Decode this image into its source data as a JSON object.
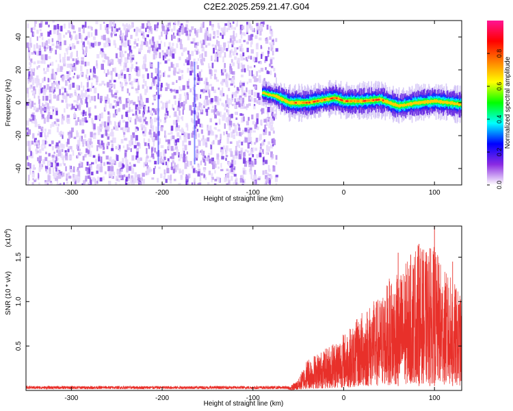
{
  "title": "C2E2.2025.259.21.47.G04",
  "chart_data": [
    {
      "type": "heatmap",
      "name": "spectrogram",
      "xlabel": "Height of straight line (km)",
      "ylabel": "Frequency (Hz)",
      "xlim": [
        -350,
        130
      ],
      "ylim": [
        -50,
        50
      ],
      "xticks": [
        -300,
        -200,
        -100,
        0,
        100
      ],
      "xtick_labels": [
        "-300",
        "-200",
        "-100",
        "0",
        "100"
      ],
      "yticks": [
        -40,
        -20,
        0,
        20,
        40
      ],
      "ytick_labels": [
        "-40",
        "-20",
        "0",
        "20",
        "40"
      ],
      "noise_region_x": [
        -350,
        -75
      ],
      "signal_region_x": [
        -90,
        130
      ],
      "signal_center_freq_hz": [
        {
          "x": -90,
          "f": 6
        },
        {
          "x": -75,
          "f": 4
        },
        {
          "x": -60,
          "f": 0
        },
        {
          "x": -40,
          "f": 0
        },
        {
          "x": -20,
          "f": 2
        },
        {
          "x": -10,
          "f": 3
        },
        {
          "x": 0,
          "f": 1
        },
        {
          "x": 20,
          "f": 1
        },
        {
          "x": 40,
          "f": 2
        },
        {
          "x": 60,
          "f": -2
        },
        {
          "x": 80,
          "f": 0
        },
        {
          "x": 100,
          "f": 1
        },
        {
          "x": 130,
          "f": -1
        }
      ],
      "colorbar": {
        "label": "Normalized spectral amplitude",
        "range": [
          0,
          1
        ],
        "ticks": [
          0.0,
          0.2,
          0.4,
          0.6,
          0.8
        ],
        "tick_labels": [
          "0.0",
          "0.2",
          "0.4",
          "0.6",
          "0.8"
        ],
        "colors": [
          "#ffffff",
          "#8a2be2",
          "#0000ff",
          "#00ffff",
          "#00ff00",
          "#ffff00",
          "#ff8000",
          "#ff0000",
          "#ff1493"
        ]
      }
    },
    {
      "type": "line",
      "name": "snr",
      "xlabel": "Height of straight line (km)",
      "ylabel": "SNR (10 * v/v)",
      "multiplier_label": "(x10",
      "multiplier_exp": "4",
      "multiplier_close": ")",
      "xlim": [
        -350,
        130
      ],
      "ylim": [
        0,
        1.85
      ],
      "xticks": [
        -300,
        -200,
        -100,
        0,
        100
      ],
      "xtick_labels": [
        "-300",
        "-200",
        "-100",
        "0",
        "100"
      ],
      "yticks": [
        0.5,
        1.0,
        1.5
      ],
      "ytick_labels": [
        "0.5",
        "1.0",
        "1.5"
      ],
      "series_color": "#e8302a",
      "envelope": [
        {
          "x": -350,
          "y": 0.04
        },
        {
          "x": -60,
          "y": 0.04
        },
        {
          "x": -50,
          "y": 0.12
        },
        {
          "x": -40,
          "y": 0.35
        },
        {
          "x": -30,
          "y": 0.4
        },
        {
          "x": -20,
          "y": 0.45
        },
        {
          "x": -10,
          "y": 0.55
        },
        {
          "x": 0,
          "y": 0.62
        },
        {
          "x": 10,
          "y": 0.7
        },
        {
          "x": 20,
          "y": 0.85
        },
        {
          "x": 30,
          "y": 0.95
        },
        {
          "x": 40,
          "y": 1.0
        },
        {
          "x": 50,
          "y": 1.2
        },
        {
          "x": 60,
          "y": 1.25
        },
        {
          "x": 70,
          "y": 1.4
        },
        {
          "x": 80,
          "y": 1.6
        },
        {
          "x": 90,
          "y": 1.5
        },
        {
          "x": 100,
          "y": 1.55
        },
        {
          "x": 110,
          "y": 1.3
        },
        {
          "x": 120,
          "y": 1.2
        },
        {
          "x": 130,
          "y": 1.0
        }
      ],
      "peaks": [
        {
          "x": 100,
          "y": 1.85
        },
        {
          "x": 83,
          "y": 1.65
        },
        {
          "x": 60,
          "y": 1.55
        },
        {
          "x": 120,
          "y": 1.45
        },
        {
          "x": 95,
          "y": 1.6
        }
      ]
    }
  ]
}
